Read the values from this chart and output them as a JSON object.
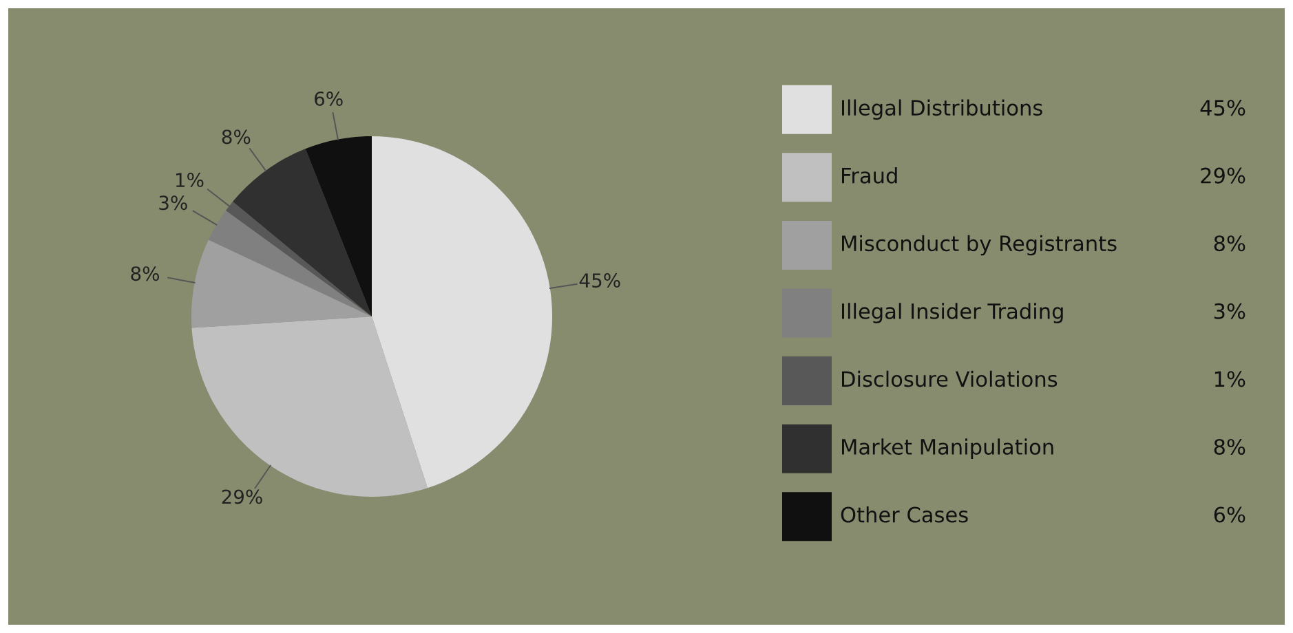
{
  "chart_data": {
    "type": "pie",
    "categories": [
      "Illegal Distributions",
      "Fraud",
      "Misconduct by Registrants",
      "Illegal Insider Trading",
      "Disclosure Violations",
      "Market Manipulation",
      "Other Cases"
    ],
    "values": [
      45,
      29,
      8,
      3,
      1,
      8,
      6
    ],
    "colors": [
      "#e0e0e0",
      "#c0c0c0",
      "#a0a0a0",
      "#808080",
      "#585858",
      "#303030",
      "#101010"
    ],
    "value_labels": [
      "45%",
      "29%",
      "8%",
      "3%",
      "1%",
      "8%",
      "6%"
    ],
    "legend": "right"
  }
}
